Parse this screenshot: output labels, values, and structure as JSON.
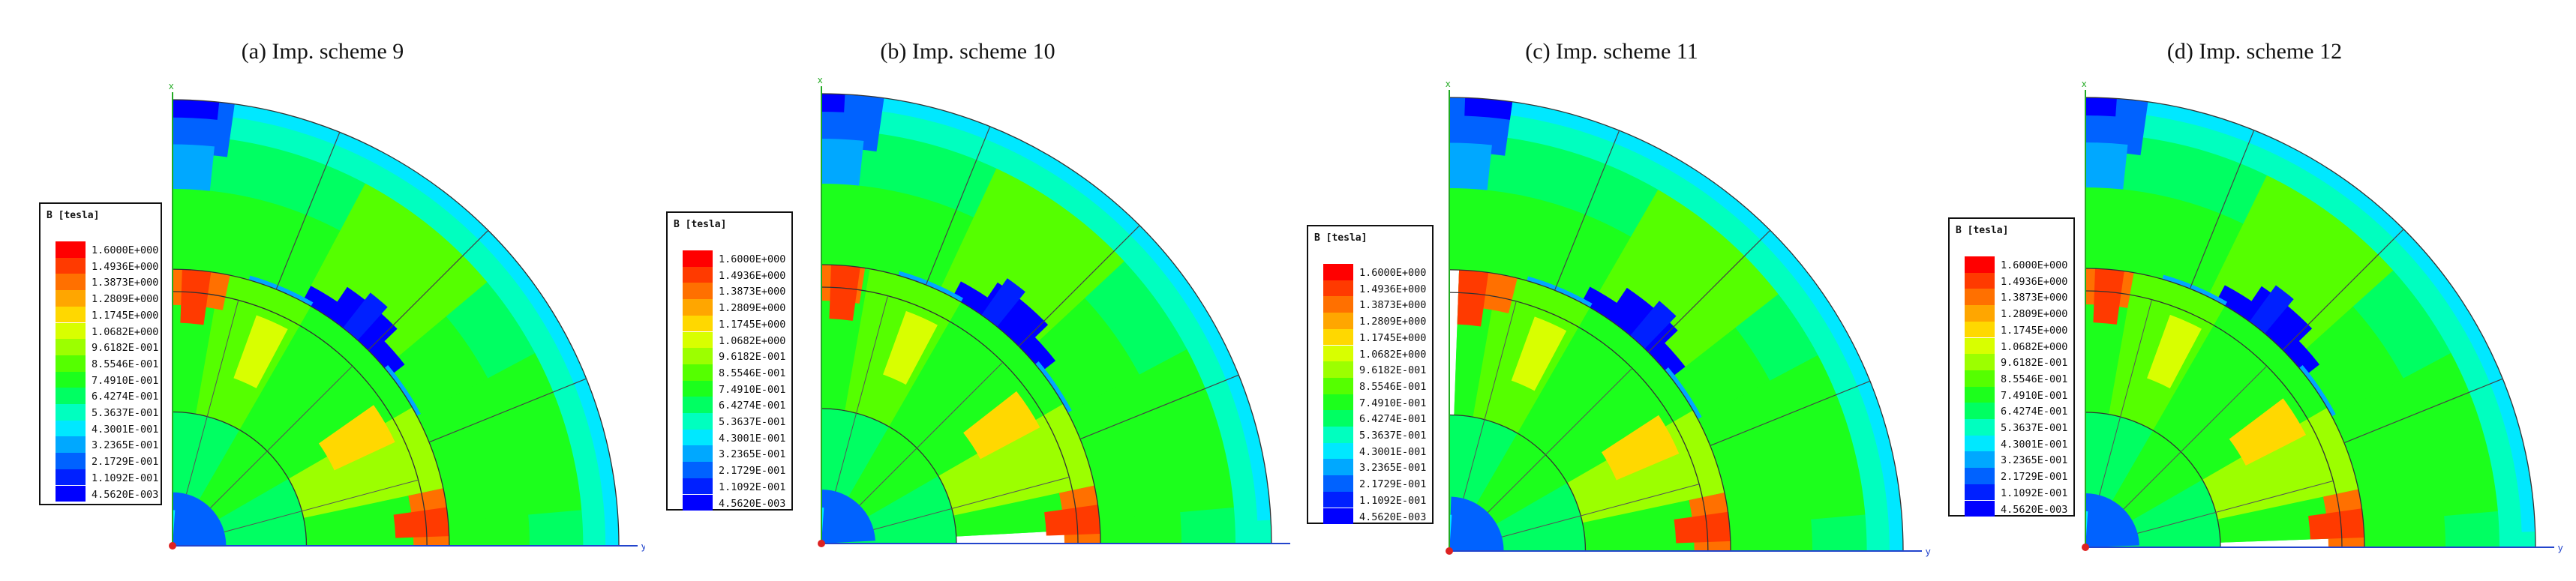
{
  "legend": {
    "title": "B [tesla]",
    "values": [
      "1.6000E+000",
      "1.4936E+000",
      "1.3873E+000",
      "1.2809E+000",
      "1.1745E+000",
      "1.0682E+000",
      "9.6182E-001",
      "8.5546E-001",
      "7.4910E-001",
      "6.4274E-001",
      "5.3637E-001",
      "4.3001E-001",
      "3.2365E-001",
      "2.1729E-001",
      "1.1092E-001",
      "4.5620E-003"
    ],
    "colors": [
      "#ff0000",
      "#ff3a00",
      "#ff7000",
      "#ffa600",
      "#ffd800",
      "#d8ff00",
      "#9cff00",
      "#55ff00",
      "#1cff1c",
      "#00ff62",
      "#00ffbf",
      "#00e8ff",
      "#00a8ff",
      "#0062ff",
      "#0020ff",
      "#0000ff"
    ]
  },
  "axes": {
    "x": "x",
    "y": "y"
  },
  "panels": [
    {
      "title": "(a) Imp. scheme 9"
    },
    {
      "title": "(b) Imp. scheme 10"
    },
    {
      "title": "(c) Imp. scheme 11"
    },
    {
      "title": "(d) Imp. scheme 12"
    }
  ]
}
